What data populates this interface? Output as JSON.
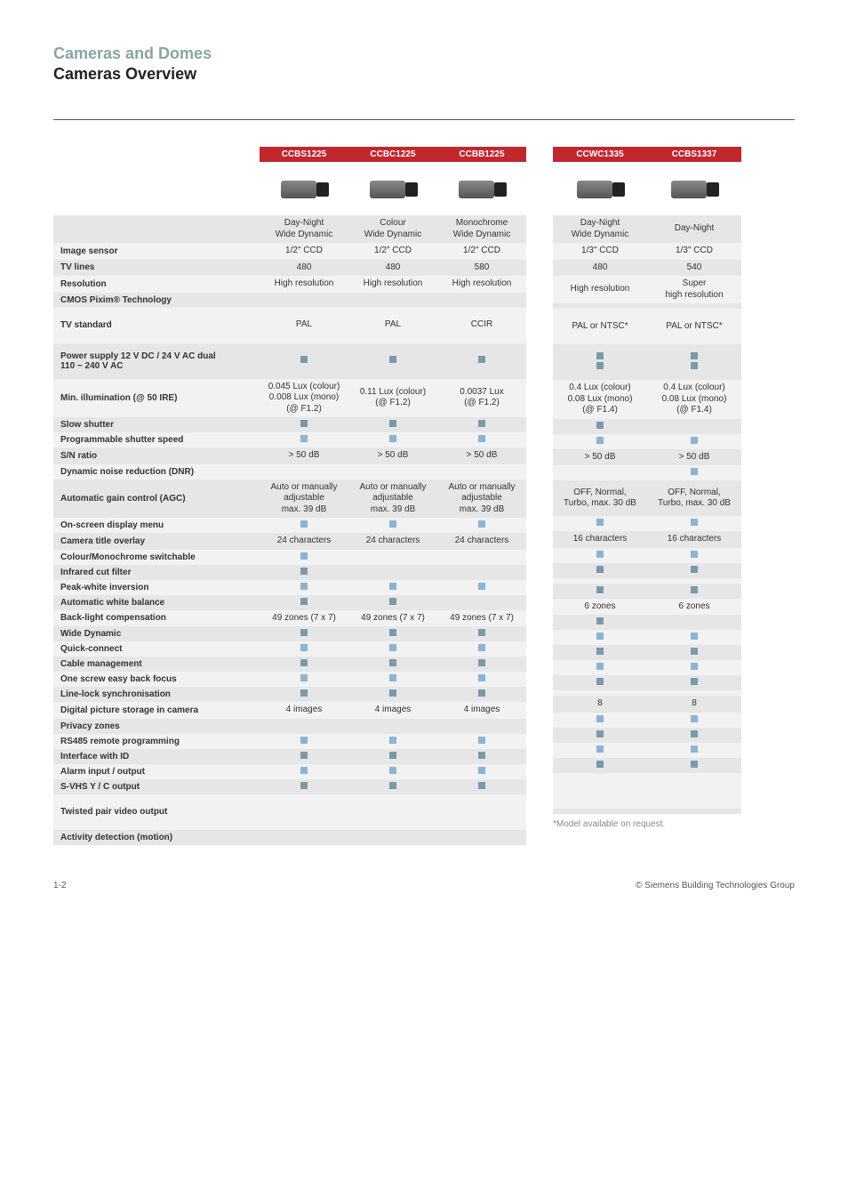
{
  "header": {
    "breadcrumb": "Cameras and Domes",
    "title": "Cameras Overview"
  },
  "footer": {
    "page": "1-2",
    "copyright": "© Siemens Building Technologies Group"
  },
  "footnote": "*Model available on request.",
  "colors": {
    "header_bg": "#c1272d",
    "header_fg": "#ffffff",
    "row_even": "#f2f2f2",
    "row_odd": "#e6e6e6",
    "square_light": "#8ab4d8",
    "square_dark": "#7a9aaa",
    "breadcrumb": "#8aa4a4"
  },
  "left": {
    "cols": [
      "CCBS1225",
      "CCBC1225",
      "CCBB1225"
    ],
    "rows": [
      {
        "label": "",
        "type": "desc",
        "v": [
          "Day-Night\nWide Dynamic",
          "Colour\nWide Dynamic",
          "Monochrome\nWide Dynamic"
        ]
      },
      {
        "label": "Image sensor",
        "v": [
          "1/2\" CCD",
          "1/2\" CCD",
          "1/2\" CCD"
        ]
      },
      {
        "label": "TV lines",
        "v": [
          "480",
          "480",
          "580"
        ]
      },
      {
        "label": "Resolution",
        "v": [
          "High resolution",
          "High resolution",
          "High resolution"
        ]
      },
      {
        "label": "CMOS Pixim® Technology",
        "v": [
          "",
          "",
          ""
        ]
      },
      {
        "label": "TV standard",
        "tall": true,
        "v": [
          "PAL",
          "PAL",
          "CCIR"
        ]
      },
      {
        "label": "Power supply   12 V DC / 24 V AC dual\n                       110 ~ 240 V AC",
        "tall": true,
        "v": [
          "sqd",
          "sqd",
          "sqd"
        ]
      },
      {
        "label": "Min. illumination (@ 50 IRE)",
        "tall": true,
        "v": [
          "0.045 Lux (colour)\n0.008 Lux (mono)\n(@ F1.2)",
          "0.11 Lux (colour)\n(@ F1.2)",
          "0.0037 Lux\n(@ F1.2)"
        ]
      },
      {
        "label": "Slow shutter",
        "v": [
          "sqd",
          "sqd",
          "sqd"
        ]
      },
      {
        "label": "Programmable shutter speed",
        "v": [
          "sq",
          "sq",
          "sq"
        ]
      },
      {
        "label": "S/N ratio",
        "v": [
          "> 50 dB",
          "> 50 dB",
          "> 50 dB"
        ]
      },
      {
        "label": "Dynamic noise reduction (DNR)",
        "v": [
          "",
          "",
          ""
        ]
      },
      {
        "label": "Automatic gain control (AGC)",
        "tall": true,
        "v": [
          "Auto or manually\nadjustable\nmax. 39 dB",
          "Auto or manually\nadjustable\nmax. 39 dB",
          "Auto or manually\nadjustable\nmax. 39 dB"
        ]
      },
      {
        "label": "On-screen display menu",
        "v": [
          "sq",
          "sq",
          "sq"
        ]
      },
      {
        "label": "Camera title overlay",
        "v": [
          "24 characters",
          "24 characters",
          "24 characters"
        ]
      },
      {
        "label": "Colour/Monochrome switchable",
        "v": [
          "sq",
          "",
          ""
        ]
      },
      {
        "label": "Infrared cut filter",
        "v": [
          "sqd",
          "",
          ""
        ]
      },
      {
        "label": "Peak-white inversion",
        "v": [
          "sq",
          "sq",
          "sq"
        ]
      },
      {
        "label": "Automatic white balance",
        "v": [
          "sqd",
          "sqd",
          ""
        ]
      },
      {
        "label": "Back-light compensation",
        "v": [
          "49 zones (7 x 7)",
          "49 zones (7 x 7)",
          "49 zones (7 x 7)"
        ]
      },
      {
        "label": "Wide Dynamic",
        "v": [
          "sqd",
          "sqd",
          "sqd"
        ]
      },
      {
        "label": "Quick-connect",
        "v": [
          "sq",
          "sq",
          "sq"
        ]
      },
      {
        "label": "Cable management",
        "v": [
          "sqd",
          "sqd",
          "sqd"
        ]
      },
      {
        "label": "One screw easy back focus",
        "v": [
          "sq",
          "sq",
          "sq"
        ]
      },
      {
        "label": "Line-lock synchronisation",
        "v": [
          "sqd",
          "sqd",
          "sqd"
        ]
      },
      {
        "label": "Digital picture storage in camera",
        "v": [
          "4 images",
          "4 images",
          "4 images"
        ]
      },
      {
        "label": "Privacy zones",
        "v": [
          "",
          "",
          ""
        ]
      },
      {
        "label": "RS485 remote programming",
        "v": [
          "sq",
          "sq",
          "sq"
        ]
      },
      {
        "label": "Interface with ID",
        "v": [
          "sqd",
          "sqd",
          "sqd"
        ]
      },
      {
        "label": "Alarm input / output",
        "v": [
          "sq",
          "sq",
          "sq"
        ]
      },
      {
        "label": "S-VHS Y / C output",
        "v": [
          "sqd",
          "sqd",
          "sqd"
        ]
      },
      {
        "label": "Twisted pair video output",
        "tall": true,
        "v": [
          "",
          "",
          ""
        ]
      },
      {
        "label": "Activity detection (motion)",
        "v": [
          "",
          "",
          ""
        ]
      }
    ]
  },
  "right": {
    "cols": [
      "CCWC1335",
      "CCBS1337"
    ],
    "rows": [
      {
        "v": [
          "Day-Night\nWide Dynamic",
          "Day-Night"
        ]
      },
      {
        "v": [
          "1/3\" CCD",
          "1/3\" CCD"
        ]
      },
      {
        "v": [
          "480",
          "540"
        ]
      },
      {
        "v": [
          "High resolution",
          "Super\nhigh resolution"
        ]
      },
      {
        "v": [
          "",
          ""
        ]
      },
      {
        "tall": true,
        "v": [
          "PAL or NTSC*",
          "PAL or NTSC*"
        ]
      },
      {
        "tall": true,
        "v": [
          "sqd2",
          "sqd2"
        ]
      },
      {
        "tall": true,
        "v": [
          "0.4 Lux (colour)\n0.08 Lux (mono)\n(@ F1.4)",
          "0.4 Lux (colour)\n0.08 Lux (mono)\n(@ F1.4)"
        ]
      },
      {
        "v": [
          "sqd",
          ""
        ]
      },
      {
        "v": [
          "sq",
          "sq"
        ]
      },
      {
        "v": [
          "> 50 dB",
          "> 50 dB"
        ]
      },
      {
        "v": [
          "",
          "sq"
        ]
      },
      {
        "tall": true,
        "v": [
          "OFF, Normal,\nTurbo, max. 30 dB",
          "OFF, Normal,\nTurbo, max. 30 dB"
        ]
      },
      {
        "v": [
          "sq",
          "sq"
        ]
      },
      {
        "v": [
          "16 characters",
          "16 characters"
        ]
      },
      {
        "v": [
          "sq",
          "sq"
        ]
      },
      {
        "v": [
          "sqd",
          "sqd"
        ]
      },
      {
        "v": [
          "",
          ""
        ]
      },
      {
        "v": [
          "sqd",
          "sqd"
        ]
      },
      {
        "v": [
          "6 zones",
          "6 zones"
        ]
      },
      {
        "v": [
          "sqd",
          ""
        ]
      },
      {
        "v": [
          "sq",
          "sq"
        ]
      },
      {
        "v": [
          "sqd",
          "sqd"
        ]
      },
      {
        "v": [
          "sq",
          "sq"
        ]
      },
      {
        "v": [
          "sqd",
          "sqd"
        ]
      },
      {
        "v": [
          "",
          ""
        ]
      },
      {
        "v": [
          "8",
          "8"
        ]
      },
      {
        "v": [
          "sq",
          "sq"
        ]
      },
      {
        "v": [
          "sqd",
          "sqd"
        ]
      },
      {
        "v": [
          "sq",
          "sq"
        ]
      },
      {
        "v": [
          "sqd",
          "sqd"
        ]
      },
      {
        "tall": true,
        "v": [
          "",
          ""
        ]
      },
      {
        "v": [
          "",
          ""
        ]
      }
    ]
  }
}
